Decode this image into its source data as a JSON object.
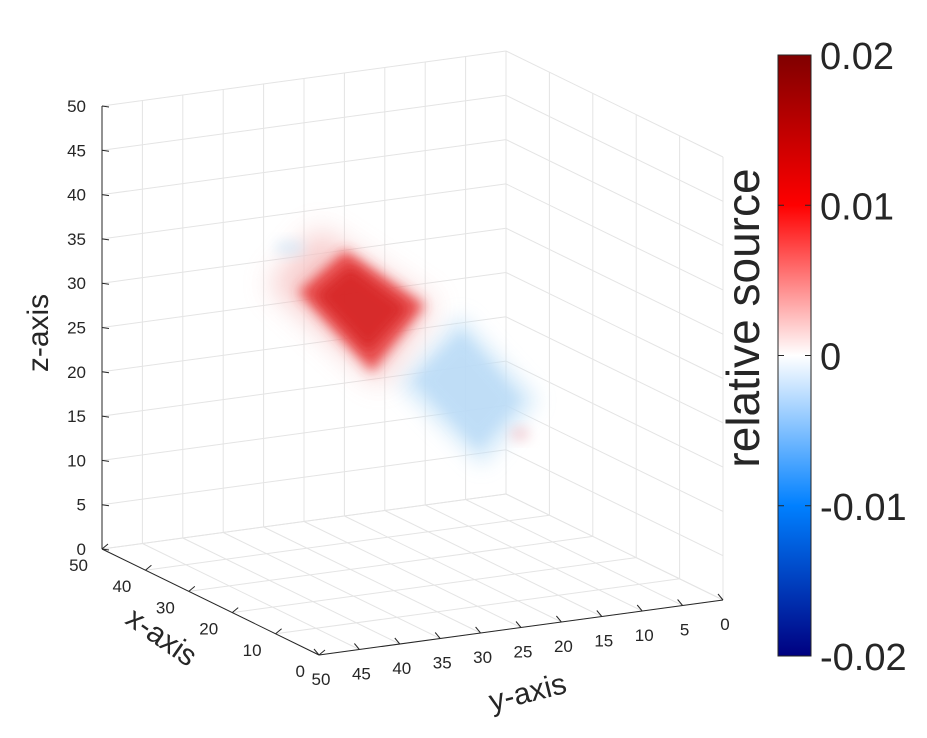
{
  "chart_data": {
    "type": "volume-3d",
    "xlabel": "x-axis",
    "ylabel": "y-axis",
    "zlabel": "z-axis",
    "xlim": [
      0,
      50
    ],
    "ylim": [
      0,
      50
    ],
    "zlim": [
      0,
      50
    ],
    "x_ticks": [
      "0",
      "10",
      "20",
      "30",
      "40",
      "50"
    ],
    "y_ticks": [
      "0",
      "5",
      "10",
      "15",
      "20",
      "25",
      "30",
      "35",
      "40",
      "45",
      "50"
    ],
    "z_ticks": [
      "0",
      "5",
      "10",
      "15",
      "20",
      "25",
      "30",
      "35",
      "40",
      "45",
      "50"
    ],
    "grid": true,
    "colorbar": {
      "label": "relative source",
      "ticks": [
        "0.02",
        "0.01",
        "0",
        "-0.01",
        "-0.02"
      ],
      "range": [
        -0.02,
        0.02
      ],
      "colors": [
        "#000080",
        "#0080ff",
        "#ffffff",
        "#ff0000",
        "#800000"
      ]
    },
    "blobs": [
      {
        "name": "positive",
        "center": [
          22,
          30,
          27
        ],
        "peak": 0.0125,
        "color": "#e01818"
      },
      {
        "name": "negative",
        "center": [
          22,
          17,
          16
        ],
        "peak": -0.002,
        "color": "#aad4f5"
      }
    ]
  }
}
